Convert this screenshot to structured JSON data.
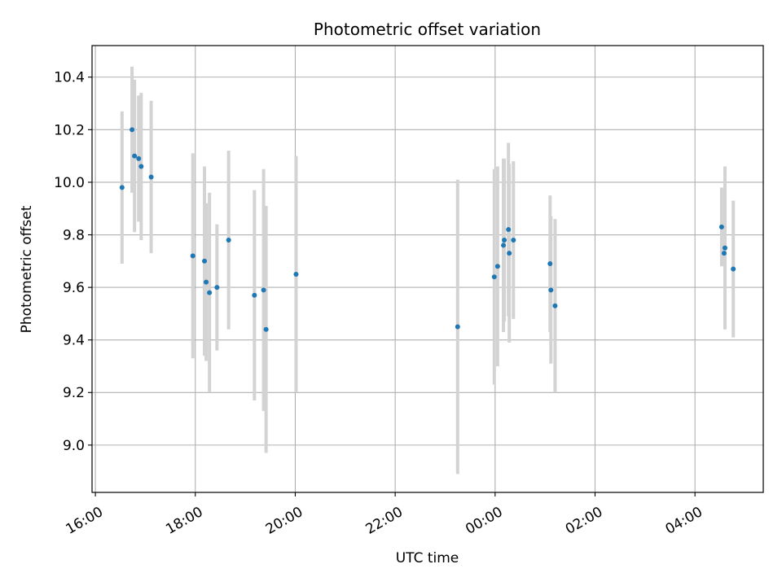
{
  "chart_data": {
    "type": "scatter",
    "title": "Photometric offset variation",
    "xlabel": "UTC time",
    "ylabel": "Photometric offset",
    "grid": true,
    "xlim": [
      "15:56",
      "05:22"
    ],
    "ylim": [
      8.82,
      10.52
    ],
    "xticks": [
      "16:00",
      "18:00",
      "20:00",
      "22:00",
      "00:00",
      "02:00",
      "04:00"
    ],
    "yticks": [
      "9.0",
      "9.2",
      "9.4",
      "9.6",
      "9.8",
      "10.0",
      "10.2",
      "10.4"
    ],
    "colors": {
      "point": "#1f77b4",
      "errorbar": "#d3d3d3",
      "grid": "#b0b0b0"
    },
    "points": [
      {
        "t": "16:32",
        "y": 9.98,
        "err": 0.29
      },
      {
        "t": "16:44",
        "y": 10.2,
        "err": 0.24
      },
      {
        "t": "16:47",
        "y": 10.1,
        "err": 0.29
      },
      {
        "t": "16:52",
        "y": 10.09,
        "err": 0.24
      },
      {
        "t": "16:55",
        "y": 10.06,
        "err": 0.28
      },
      {
        "t": "17:07",
        "y": 10.02,
        "err": 0.29
      },
      {
        "t": "17:57",
        "y": 9.72,
        "err": 0.39
      },
      {
        "t": "18:11",
        "y": 9.7,
        "err": 0.36
      },
      {
        "t": "18:13",
        "y": 9.62,
        "err": 0.3
      },
      {
        "t": "18:17",
        "y": 9.58,
        "err": 0.38
      },
      {
        "t": "18:26",
        "y": 9.6,
        "err": 0.24
      },
      {
        "t": "18:40",
        "y": 9.78,
        "err": 0.34
      },
      {
        "t": "19:11",
        "y": 9.57,
        "err": 0.4
      },
      {
        "t": "19:22",
        "y": 9.59,
        "err": 0.46
      },
      {
        "t": "19:25",
        "y": 9.44,
        "err": 0.47
      },
      {
        "t": "20:01",
        "y": 9.65,
        "err": 0.45
      },
      {
        "t": "23:15",
        "y": 9.45,
        "err": 0.56
      },
      {
        "t": "23:59",
        "y": 9.64,
        "err": 0.41
      },
      {
        "t": "00:03",
        "y": 9.68,
        "err": 0.38
      },
      {
        "t": "00:10",
        "y": 9.76,
        "err": 0.33
      },
      {
        "t": "00:11",
        "y": 9.78,
        "err": 0.31
      },
      {
        "t": "00:16",
        "y": 9.82,
        "err": 0.33
      },
      {
        "t": "00:17",
        "y": 9.73,
        "err": 0.34
      },
      {
        "t": "00:22",
        "y": 9.78,
        "err": 0.3
      },
      {
        "t": "01:06",
        "y": 9.69,
        "err": 0.26
      },
      {
        "t": "01:07",
        "y": 9.59,
        "err": 0.28
      },
      {
        "t": "01:12",
        "y": 9.53,
        "err": 0.33
      },
      {
        "t": "04:32",
        "y": 9.83,
        "err": 0.15
      },
      {
        "t": "04:35",
        "y": 9.73,
        "err": 0.04
      },
      {
        "t": "04:36",
        "y": 9.75,
        "err": 0.31
      },
      {
        "t": "04:46",
        "y": 9.67,
        "err": 0.26
      }
    ]
  }
}
